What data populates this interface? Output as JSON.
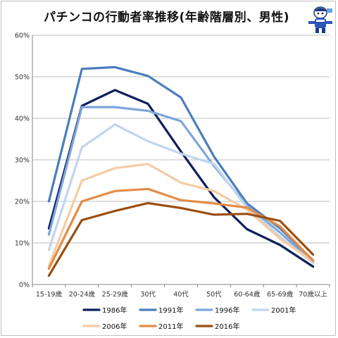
{
  "chart_data": {
    "type": "line",
    "title": "パチンコの行動者率推移(年齢階層別、男性)",
    "categories": [
      "15-19歳",
      "20-24歳",
      "25-29歳",
      "30代",
      "40代",
      "50代",
      "60-64歳",
      "65-69歳",
      "70歳以上"
    ],
    "ylim": [
      0,
      60
    ],
    "yticks": [
      "0%",
      "10%",
      "20%",
      "30%",
      "40%",
      "50%",
      "60%"
    ],
    "grid": true,
    "legend_position": "bottom",
    "series": [
      {
        "name": "1986年",
        "color": "#0d1f5c",
        "values": [
          13.5,
          43.0,
          46.8,
          43.5,
          32.0,
          21.0,
          13.3,
          9.5,
          4.3
        ]
      },
      {
        "name": "1991年",
        "color": "#4a7dbd",
        "values": [
          20.0,
          51.9,
          52.3,
          50.2,
          45.0,
          30.8,
          19.5,
          13.5,
          5.8
        ]
      },
      {
        "name": "1996年",
        "color": "#7ea6dc",
        "values": [
          12.0,
          42.7,
          42.7,
          41.8,
          39.3,
          28.5,
          19.0,
          12.5,
          5.4
        ]
      },
      {
        "name": "2001年",
        "color": "#c2d5ee",
        "values": [
          8.3,
          33.0,
          38.5,
          34.5,
          31.5,
          29.0,
          18.5,
          11.5,
          5.2
        ]
      },
      {
        "name": "2006年",
        "color": "#f6cba4",
        "values": [
          4.5,
          25.0,
          28.0,
          29.0,
          24.5,
          22.5,
          18.0,
          11.0,
          5.6
        ]
      },
      {
        "name": "2011年",
        "color": "#e38c46",
        "values": [
          3.8,
          20.0,
          22.5,
          23.0,
          20.3,
          19.5,
          18.5,
          14.0,
          5.7
        ]
      },
      {
        "name": "2016年",
        "color": "#9c4e0f",
        "values": [
          2.1,
          15.5,
          17.7,
          19.6,
          18.4,
          16.8,
          17.0,
          15.3,
          7.2
        ]
      }
    ]
  }
}
